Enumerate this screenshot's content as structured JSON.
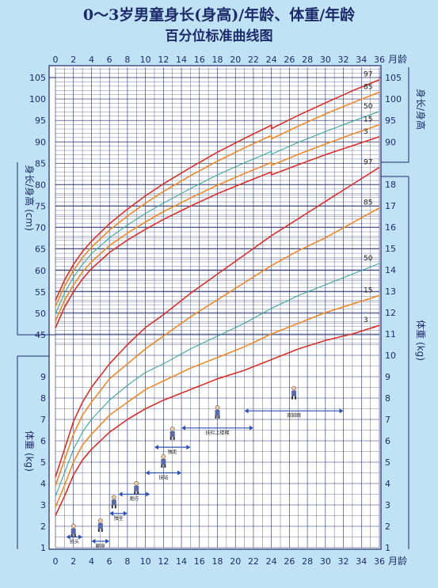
{
  "title_line1": "0～3岁男童身长(身高)/年龄、体重/年龄",
  "title_line2": "百分位标准曲线图",
  "colors": {
    "background": "#bfe3f4",
    "panel": "#ffffff",
    "grid": "#1f2a6b",
    "p3_p97": "#d9302c",
    "p15_p85": "#ee8a2a",
    "p50": "#3aa89a",
    "arrow": "#2a4fb5"
  },
  "chart_data": [
    {
      "type": "line",
      "title": "身长(身高)/年龄",
      "xlabel": "月龄",
      "ylabel": "身长/身高 (cm)",
      "xlim": [
        0,
        36
      ],
      "ylim": [
        43,
        107
      ],
      "x_ticks": [
        0,
        2,
        4,
        6,
        8,
        10,
        12,
        14,
        16,
        18,
        20,
        22,
        24,
        26,
        28,
        30,
        32,
        34,
        36
      ],
      "y_ticks": [
        45,
        50,
        55,
        60,
        65,
        70,
        75,
        80,
        85,
        90,
        95,
        100,
        105
      ],
      "x": [
        0,
        1,
        2,
        3,
        4,
        6,
        8,
        10,
        12,
        15,
        18,
        21,
        24,
        24,
        27,
        30,
        33,
        36
      ],
      "series": [
        {
          "name": "97",
          "values": [
            53.0,
            57.7,
            61.4,
            64.4,
            66.8,
            70.9,
            74.3,
            77.4,
            80.2,
            84.0,
            87.6,
            90.8,
            93.9,
            93.1,
            96.2,
            99.1,
            101.9,
            104.5
          ]
        },
        {
          "name": "85",
          "values": [
            51.6,
            56.3,
            60.0,
            63.0,
            65.4,
            69.4,
            72.7,
            75.7,
            78.4,
            82.1,
            85.5,
            88.6,
            91.5,
            90.7,
            93.7,
            96.5,
            99.1,
            101.6
          ]
        },
        {
          "name": "50",
          "values": [
            49.9,
            54.7,
            58.4,
            61.4,
            63.9,
            67.6,
            70.6,
            73.3,
            75.7,
            79.1,
            82.3,
            85.1,
            87.8,
            87.1,
            89.9,
            92.4,
            94.8,
            97.1
          ]
        },
        {
          "name": "15",
          "values": [
            48.2,
            53.0,
            56.6,
            59.6,
            62.0,
            65.8,
            68.7,
            71.3,
            73.7,
            76.9,
            79.9,
            82.6,
            85.2,
            84.5,
            87.1,
            89.5,
            91.8,
            94.0
          ]
        },
        {
          "name": "3",
          "values": [
            46.6,
            51.4,
            55.0,
            58.0,
            60.4,
            64.2,
            67.1,
            69.6,
            71.9,
            75.0,
            77.9,
            80.5,
            83.0,
            82.3,
            84.7,
            87.0,
            89.1,
            91.2
          ]
        }
      ],
      "series_labels_at": "right"
    },
    {
      "type": "line",
      "title": "体重/年龄",
      "xlabel": "月龄",
      "ylabel": "体重 (kg)",
      "xlim": [
        0,
        36
      ],
      "ylim": [
        1,
        18.5
      ],
      "x_ticks": [
        0,
        2,
        4,
        6,
        8,
        10,
        12,
        14,
        16,
        18,
        20,
        22,
        24,
        26,
        28,
        30,
        32,
        34,
        36
      ],
      "y_ticks": [
        1,
        2,
        3,
        4,
        5,
        6,
        7,
        8,
        9,
        10,
        11,
        12,
        13,
        14,
        15,
        16,
        17,
        18
      ],
      "x": [
        0,
        1,
        2,
        3,
        4,
        6,
        8,
        10,
        12,
        15,
        18,
        21,
        24,
        27,
        30,
        33,
        36
      ],
      "series": [
        {
          "name": "97",
          "values": [
            4.3,
            5.6,
            6.9,
            7.8,
            8.5,
            9.6,
            10.5,
            11.3,
            11.9,
            12.9,
            13.8,
            14.7,
            15.6,
            16.4,
            17.2,
            18.0,
            18.8
          ]
        },
        {
          "name": "85",
          "values": [
            3.9,
            5.1,
            6.3,
            7.2,
            7.8,
            8.9,
            9.6,
            10.3,
            10.9,
            11.8,
            12.6,
            13.4,
            14.2,
            14.9,
            15.5,
            16.2,
            16.9
          ]
        },
        {
          "name": "50",
          "values": [
            3.4,
            4.5,
            5.6,
            6.4,
            7.0,
            7.9,
            8.6,
            9.2,
            9.6,
            10.3,
            10.9,
            11.5,
            12.2,
            12.8,
            13.3,
            13.8,
            14.3
          ]
        },
        {
          "name": "15",
          "values": [
            2.9,
            3.9,
            5.0,
            5.8,
            6.3,
            7.2,
            7.8,
            8.4,
            8.8,
            9.4,
            9.9,
            10.4,
            11.0,
            11.5,
            12.0,
            12.4,
            12.8
          ]
        },
        {
          "name": "3",
          "values": [
            2.5,
            3.4,
            4.4,
            5.1,
            5.6,
            6.4,
            7.0,
            7.5,
            7.9,
            8.4,
            8.9,
            9.3,
            9.8,
            10.3,
            10.7,
            11.0,
            11.4
          ]
        }
      ],
      "series_labels_at": "right"
    }
  ],
  "milestones": [
    {
      "label": "抬头",
      "start": 1.2,
      "end": 3.0,
      "y": 1.5,
      "icon_x": 2.0,
      "icon_y": 1.75
    },
    {
      "label": "翻身",
      "start": 4.0,
      "end": 6.0,
      "y": 1.3,
      "icon_x": 5.0,
      "icon_y": 2.0
    },
    {
      "label": "独坐",
      "start": 6.0,
      "end": 8.0,
      "y": 2.6,
      "icon_x": 6.5,
      "icon_y": 3.1
    },
    {
      "label": "爬行",
      "start": 7.0,
      "end": 10.5,
      "y": 3.5,
      "icon_x": 9.0,
      "icon_y": 3.75
    },
    {
      "label": "扶站",
      "start": 10.0,
      "end": 14.0,
      "y": 4.5,
      "icon_x": 12.0,
      "icon_y": 5.0
    },
    {
      "label": "独走",
      "start": 11.0,
      "end": 15.0,
      "y": 5.7,
      "icon_x": 13.0,
      "icon_y": 6.3
    },
    {
      "label": "扶栏上楼梯",
      "start": 14.0,
      "end": 22.0,
      "y": 6.6,
      "icon_x": 18.0,
      "icon_y": 7.3
    },
    {
      "label": "双脚跳",
      "start": 21.0,
      "end": 32.0,
      "y": 7.4,
      "icon_x": 26.5,
      "icon_y": 8.2
    }
  ],
  "axis_unit": "月龄",
  "height_label": "身长/身高 (cm)",
  "weight_label": "体重 (kg)"
}
